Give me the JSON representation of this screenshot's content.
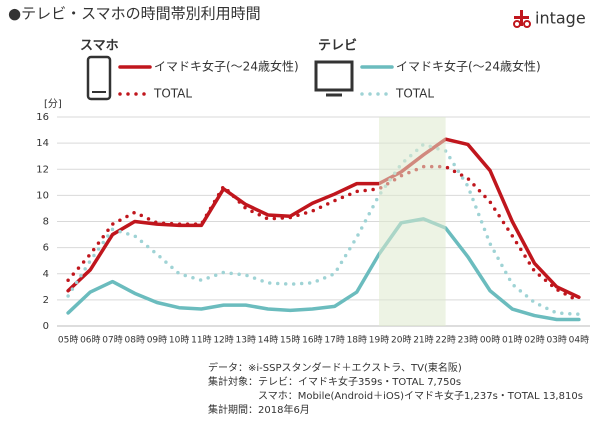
{
  "chart_data": {
    "type": "line",
    "title": "●テレビ・スマホの時間帯別利用時間",
    "logo": "intage",
    "y_label": "[分]",
    "categories": [
      "05時",
      "06時",
      "07時",
      "08時",
      "09時",
      "10時",
      "11時",
      "12時",
      "13時",
      "14時",
      "15時",
      "16時",
      "17時",
      "18時",
      "19時",
      "20時",
      "21時",
      "22時",
      "23時",
      "00時",
      "01時",
      "02時",
      "03時",
      "04時"
    ],
    "ylim": [
      0,
      16
    ],
    "yticks": [
      0,
      2,
      4,
      6,
      8,
      10,
      12,
      14,
      16
    ],
    "grid": true,
    "highlight": {
      "start": "19時",
      "end": "22時",
      "color": "#dfeacd"
    },
    "groups": [
      {
        "name": "スマホ",
        "color": "#d0242b",
        "series": [
          {
            "name": "イマドキ女子(～24歳女性)",
            "color": "#c0161d",
            "dashed": false,
            "values": [
              2.7,
              4.3,
              7.0,
              8.0,
              7.8,
              7.7,
              7.7,
              10.5,
              9.3,
              8.5,
              8.4,
              9.4,
              10.1,
              10.9,
              10.9,
              11.8,
              13.1,
              14.3,
              13.9,
              11.9,
              8.0,
              4.8,
              3.0,
              2.2
            ]
          },
          {
            "name": "TOTAL",
            "color": "#c0161d",
            "dashed": true,
            "values": [
              3.5,
              5.5,
              7.8,
              8.7,
              7.9,
              7.8,
              7.8,
              10.7,
              9.0,
              8.2,
              8.3,
              8.8,
              9.6,
              10.3,
              10.5,
              11.5,
              12.2,
              12.2,
              11.3,
              9.5,
              6.9,
              4.2,
              2.8,
              1.9
            ]
          }
        ]
      },
      {
        "name": "テレビ",
        "color": "#5fb8bb",
        "series": [
          {
            "name": "イマドキ女子(～24歳女性)",
            "color": "#6bbcbe",
            "dashed": false,
            "values": [
              1.0,
              2.6,
              3.4,
              2.5,
              1.8,
              1.4,
              1.3,
              1.6,
              1.6,
              1.3,
              1.2,
              1.3,
              1.5,
              2.6,
              5.5,
              7.9,
              8.2,
              7.5,
              5.3,
              2.7,
              1.3,
              0.8,
              0.5,
              0.5
            ]
          },
          {
            "name": "TOTAL",
            "color": "#9fd3d5",
            "dashed": true,
            "values": [
              2.3,
              5.0,
              7.4,
              6.9,
              5.5,
              4.0,
              3.5,
              4.1,
              3.9,
              3.3,
              3.2,
              3.3,
              4.0,
              6.8,
              10.0,
              12.4,
              13.9,
              13.4,
              10.7,
              6.3,
              3.2,
              1.8,
              1.0,
              0.9
            ]
          }
        ]
      }
    ],
    "notes": [
      "データ：※i-SSPスタンダード＋エクストラ、TV(東名阪)",
      "集計対象：テレビ：イマドキ女子359s・TOTAL 7,750s",
      "　　　　　スマホ：Mobile(Android＋iOS)イマドキ女子1,237s・TOTAL 13,810s",
      "集計期間：2018年6月"
    ]
  }
}
